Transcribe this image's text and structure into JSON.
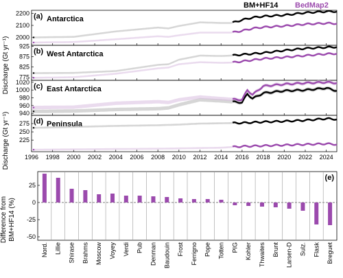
{
  "legend": {
    "series_a": "BM+HF14",
    "series_b": "BedMap2"
  },
  "colors": {
    "series_a": "#000000",
    "series_b": "#9b4aad",
    "band": "#b4b4b4",
    "band_b": "#d9bde0"
  },
  "chart_data": [
    {
      "panel": "(a)",
      "title": "Antarctica",
      "type": "line",
      "ylabel": "Discharge (Gt yr⁻¹)",
      "ylim": [
        1935,
        2225
      ],
      "yticks": [
        2000,
        2100,
        2200
      ],
      "series": [
        {
          "name": "BM+HF14",
          "x": [
            1996,
            2000,
            2004,
            2008,
            2009,
            2010,
            2012,
            2014,
            2015,
            2016,
            2017,
            2018,
            2020,
            2022,
            2024,
            2025
          ],
          "y": [
            2000,
            2005,
            2050,
            2082,
            2075,
            2095,
            2125,
            2120,
            2120,
            2145,
            2165,
            2175,
            2185,
            2205,
            2215,
            2215
          ]
        },
        {
          "name": "BedMap2",
          "x": [
            1996,
            2000,
            2004,
            2008,
            2009,
            2010,
            2012,
            2014,
            2015,
            2016,
            2017,
            2018,
            2020,
            2022,
            2024,
            2025
          ],
          "y": [
            1958,
            1962,
            1985,
            2010,
            2005,
            2018,
            2040,
            2040,
            2040,
            2055,
            2075,
            2085,
            2095,
            2110,
            2118,
            2115
          ]
        }
      ]
    },
    {
      "panel": "(b)",
      "title": "West Antarctica",
      "type": "line",
      "ylim": [
        760,
        930
      ],
      "yticks": [
        775,
        825,
        875,
        925
      ],
      "series": [
        {
          "name": "BM+HF14",
          "x": [
            1996,
            2000,
            2004,
            2008,
            2009,
            2010,
            2012,
            2014,
            2015,
            2016,
            2018,
            2020,
            2022,
            2024,
            2025
          ],
          "y": [
            795,
            796,
            805,
            835,
            838,
            860,
            880,
            878,
            880,
            885,
            893,
            905,
            915,
            920,
            922
          ]
        },
        {
          "name": "BedMap2",
          "x": [
            1996,
            2000,
            2004,
            2008,
            2009,
            2010,
            2012,
            2014,
            2015,
            2016,
            2018,
            2020,
            2022,
            2024,
            2025
          ],
          "y": [
            772,
            775,
            792,
            818,
            822,
            838,
            848,
            845,
            846,
            852,
            865,
            872,
            880,
            888,
            890
          ]
        }
      ]
    },
    {
      "panel": "(c)",
      "title": "East Antarctica",
      "type": "line",
      "ylabel": "Discharge (Gt yr⁻¹)",
      "ylim": [
        935,
        1025
      ],
      "yticks": [
        940,
        960,
        980,
        1000,
        1020
      ],
      "series": [
        {
          "name": "BM+HF14",
          "x": [
            1996,
            2000,
            2004,
            2008,
            2009,
            2010,
            2012,
            2014,
            2015,
            2016,
            2016.5,
            2017,
            2018,
            2020,
            2022,
            2024,
            2025
          ],
          "y": [
            945,
            946,
            950,
            952,
            954,
            962,
            975,
            972,
            970,
            968,
            990,
            978,
            992,
            998,
            1000,
            1005,
            998
          ]
        },
        {
          "name": "BedMap2",
          "x": [
            1996,
            2000,
            2004,
            2008,
            2009,
            2010,
            2012,
            2014,
            2015,
            2016,
            2016.5,
            2017,
            2018,
            2020,
            2022,
            2024,
            2025
          ],
          "y": [
            955,
            956,
            966,
            970,
            968,
            975,
            982,
            978,
            976,
            975,
            1000,
            988,
            1010,
            1015,
            1018,
            1020,
            1018
          ]
        }
      ]
    },
    {
      "panel": "(d)",
      "title": "Peninsula",
      "type": "line",
      "ylim": [
        190,
        300
      ],
      "yticks": [
        225,
        250,
        275
      ],
      "series": [
        {
          "name": "BM+HF14",
          "x": [
            1996,
            2000,
            2004,
            2008,
            2010,
            2012,
            2014,
            2016,
            2018,
            2020,
            2022,
            2024,
            2025
          ],
          "y": [
            262,
            265,
            268,
            270,
            272,
            275,
            276,
            277,
            280,
            282,
            285,
            290,
            288
          ]
        },
        {
          "name": "BedMap2",
          "x": [
            1996,
            2000,
            2004,
            2008,
            2010,
            2012,
            2014,
            2016,
            2018,
            2020,
            2022,
            2024,
            2025
          ],
          "y": [
            196,
            197,
            198,
            199,
            200,
            201,
            202,
            206,
            208,
            210,
            212,
            214,
            212
          ]
        }
      ]
    },
    {
      "panel": "(e)",
      "type": "bar",
      "ylabel": "Difference from BM+HF14 (%)",
      "ylim": [
        -55,
        45
      ],
      "yticks": [
        -50,
        -25,
        0,
        25
      ],
      "categories": [
        "Nord.",
        "Lillie",
        "Shirase",
        "Brahms",
        "Moscow",
        "Voyey",
        "Verdi",
        "Pub",
        "Denman",
        "Baudouin",
        "Frost",
        "Ferrigno",
        "Pope",
        "Totten",
        "PIG",
        "Kohler",
        "Thwaites",
        "Brunt",
        "Larsen-D",
        "Sulz.",
        "Flask",
        "Breguet"
      ],
      "values": [
        42,
        36,
        20,
        18,
        12,
        13,
        10,
        10,
        9,
        8,
        6,
        5,
        5,
        4,
        -4,
        -5,
        -6,
        -7,
        -9,
        -12,
        -32,
        -33
      ]
    }
  ],
  "xaxis": {
    "xlim": [
      1996,
      2025
    ],
    "ticks": [
      "1996",
      "1998",
      "2000",
      "2002",
      "2004",
      "2006",
      "2008",
      "2010",
      "2012",
      "2014",
      "2016",
      "2018",
      "2020",
      "2022",
      "2024"
    ]
  }
}
